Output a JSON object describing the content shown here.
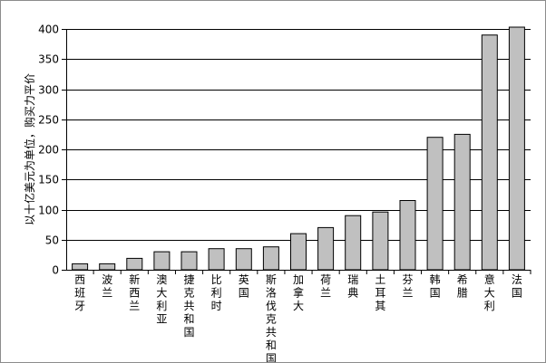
{
  "chart_data": {
    "type": "bar",
    "title": "",
    "xlabel": "",
    "ylabel": "以十亿美元为单位，购买力平价",
    "ylim": [
      0,
      400
    ],
    "yticks": [
      0,
      50,
      100,
      150,
      200,
      250,
      300,
      350,
      400
    ],
    "grid": true,
    "legend": "none",
    "bar_color": "#c0c0c0",
    "bar_edge_color": "#000000",
    "grid_color": "#000000",
    "categories": [
      "西班牙",
      "波兰",
      "新西兰",
      "澳大利亚",
      "捷克共和国",
      "比利时",
      "英国",
      "斯洛伐克共和国",
      "加拿大",
      "荷兰",
      "瑞典",
      "土耳其",
      "芬兰",
      "韩国",
      "希腊",
      "意大利",
      "法国"
    ],
    "values": [
      10,
      10,
      19,
      30,
      30,
      35,
      35,
      38,
      60,
      70,
      90,
      96,
      115,
      220,
      225,
      390,
      403
    ]
  }
}
